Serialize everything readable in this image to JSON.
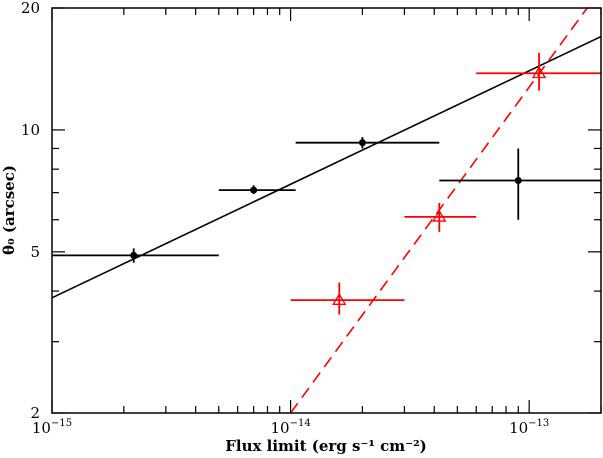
{
  "chart_data": {
    "type": "scatter",
    "xscale": "log",
    "yscale": "log",
    "xlim": [
      1e-15,
      2e-13
    ],
    "ylim": [
      2,
      20
    ],
    "grid": false,
    "xlabel": "Flux limit (erg s⁻¹ cm⁻²)",
    "ylabel": "θ₀ (arcsec)",
    "x_tick_labels": [
      {
        "value": 1e-15,
        "base": "10",
        "exp": "−15"
      },
      {
        "value": 1e-14,
        "base": "10",
        "exp": "−14"
      },
      {
        "value": 1e-13,
        "base": "10",
        "exp": "−13"
      }
    ],
    "y_tick_labels": [
      {
        "value": 2,
        "label": "2"
      },
      {
        "value": 5,
        "label": "5"
      },
      {
        "value": 10,
        "label": "10"
      },
      {
        "value": 20,
        "label": "20"
      }
    ],
    "series": [
      {
        "color": "#000000",
        "marker": "filled-circle",
        "points": [
          {
            "x": 2.2e-15,
            "y": 4.9,
            "xerr": [
              1e-15,
              5e-15
            ],
            "yerr": [
              4.7,
              5.1
            ]
          },
          {
            "x": 7e-15,
            "y": 7.1,
            "xerr": [
              5e-15,
              1.05e-14
            ],
            "yerr": [
              6.95,
              7.3
            ]
          },
          {
            "x": 2e-14,
            "y": 9.3,
            "xerr": [
              1.05e-14,
              4.2e-14
            ],
            "yerr": [
              9.0,
              9.6
            ]
          },
          {
            "x": 9e-14,
            "y": 7.5,
            "xerr": [
              4.2e-14,
              2e-13
            ],
            "yerr": [
              6.0,
              9.0
            ]
          }
        ],
        "fit_line": [
          {
            "x": 1e-15,
            "y": 3.85
          },
          {
            "x": 2e-13,
            "y": 17.0
          }
        ]
      },
      {
        "color": "#ff0000",
        "marker": "open-triangle",
        "points": [
          {
            "x": 1.6e-14,
            "y": 3.8,
            "xerr": [
              1e-14,
              3e-14
            ],
            "yerr": [
              3.5,
              4.2
            ]
          },
          {
            "x": 4.2e-14,
            "y": 6.1,
            "xerr": [
              3e-14,
              6e-14
            ],
            "yerr": [
              5.6,
              6.6
            ]
          },
          {
            "x": 1.1e-13,
            "y": 13.8,
            "xerr": [
              6e-14,
              2e-13
            ],
            "yerr": [
              12.5,
              15.5
            ]
          }
        ],
        "fit_line": [
          {
            "x": 1e-14,
            "y": 2.0
          },
          {
            "x": 1.75e-13,
            "y": 20.0
          }
        ]
      }
    ]
  }
}
